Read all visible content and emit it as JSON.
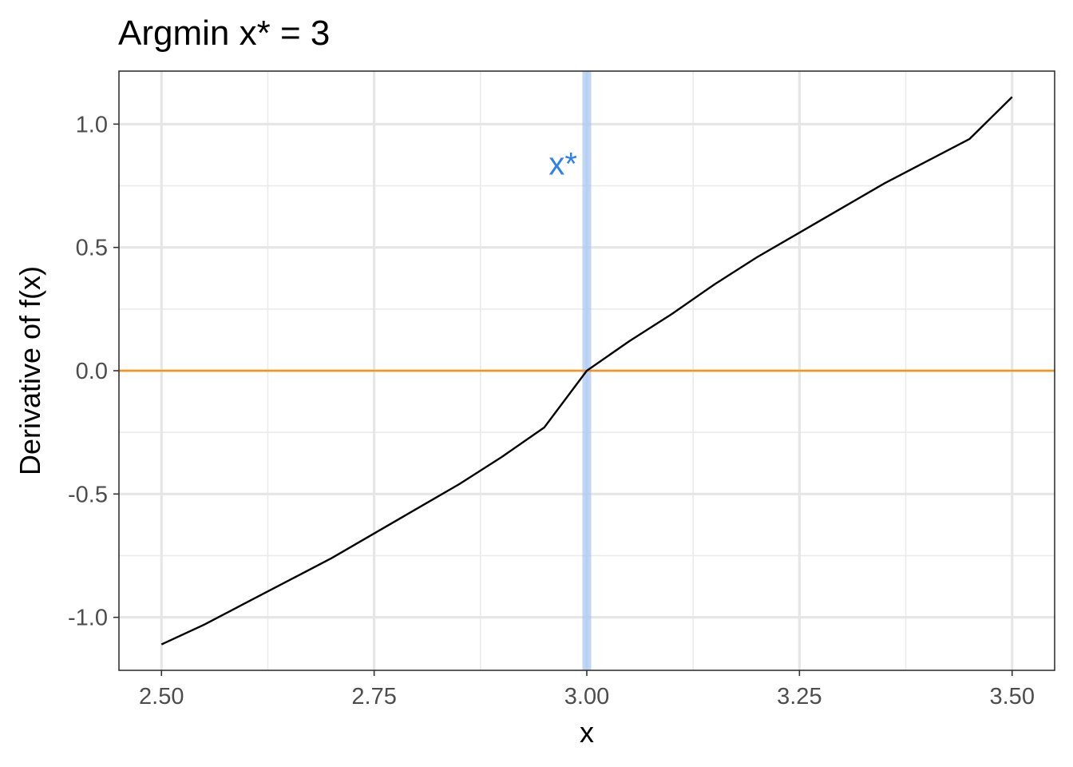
{
  "chart_data": {
    "type": "line",
    "title": "Argmin x* = 3",
    "xlabel": "x",
    "ylabel": "Derivative of f(x)",
    "xlim": [
      2.45,
      3.55
    ],
    "ylim": [
      -1.215,
      1.215
    ],
    "x_ticks": [
      2.5,
      2.75,
      3.0,
      3.25,
      3.5
    ],
    "x_tick_labels": [
      "2.50",
      "2.75",
      "3.00",
      "3.25",
      "3.50"
    ],
    "x_minor_ticks": [
      2.625,
      2.875,
      3.125,
      3.375
    ],
    "y_ticks": [
      -1.0,
      -0.5,
      0.0,
      0.5,
      1.0
    ],
    "y_tick_labels": [
      "-1.0",
      "-0.5",
      "0.0",
      "0.5",
      "1.0"
    ],
    "y_minor_ticks": [
      -0.75,
      -0.25,
      0.25,
      0.75
    ],
    "grid": true,
    "series": [
      {
        "color": "#000000",
        "x": [
          2.5,
          2.55,
          2.6,
          2.65,
          2.7,
          2.75,
          2.8,
          2.85,
          2.9,
          2.95,
          3.0,
          3.05,
          3.1,
          3.15,
          3.2,
          3.25,
          3.3,
          3.35,
          3.4,
          3.45,
          3.5
        ],
        "y": [
          -1.11,
          -1.03,
          -0.94,
          -0.85,
          -0.76,
          -0.66,
          -0.56,
          -0.46,
          -0.35,
          -0.23,
          0.0,
          0.12,
          0.23,
          0.35,
          0.46,
          0.56,
          0.66,
          0.76,
          0.85,
          0.94,
          1.11
        ]
      }
    ],
    "hline": {
      "y": 0,
      "color": "#f7941d"
    },
    "vline": {
      "x": 3.0,
      "color": "#a4c4f4",
      "label": "x*",
      "label_color": "#2f7ff0",
      "label_y": 0.84
    }
  }
}
